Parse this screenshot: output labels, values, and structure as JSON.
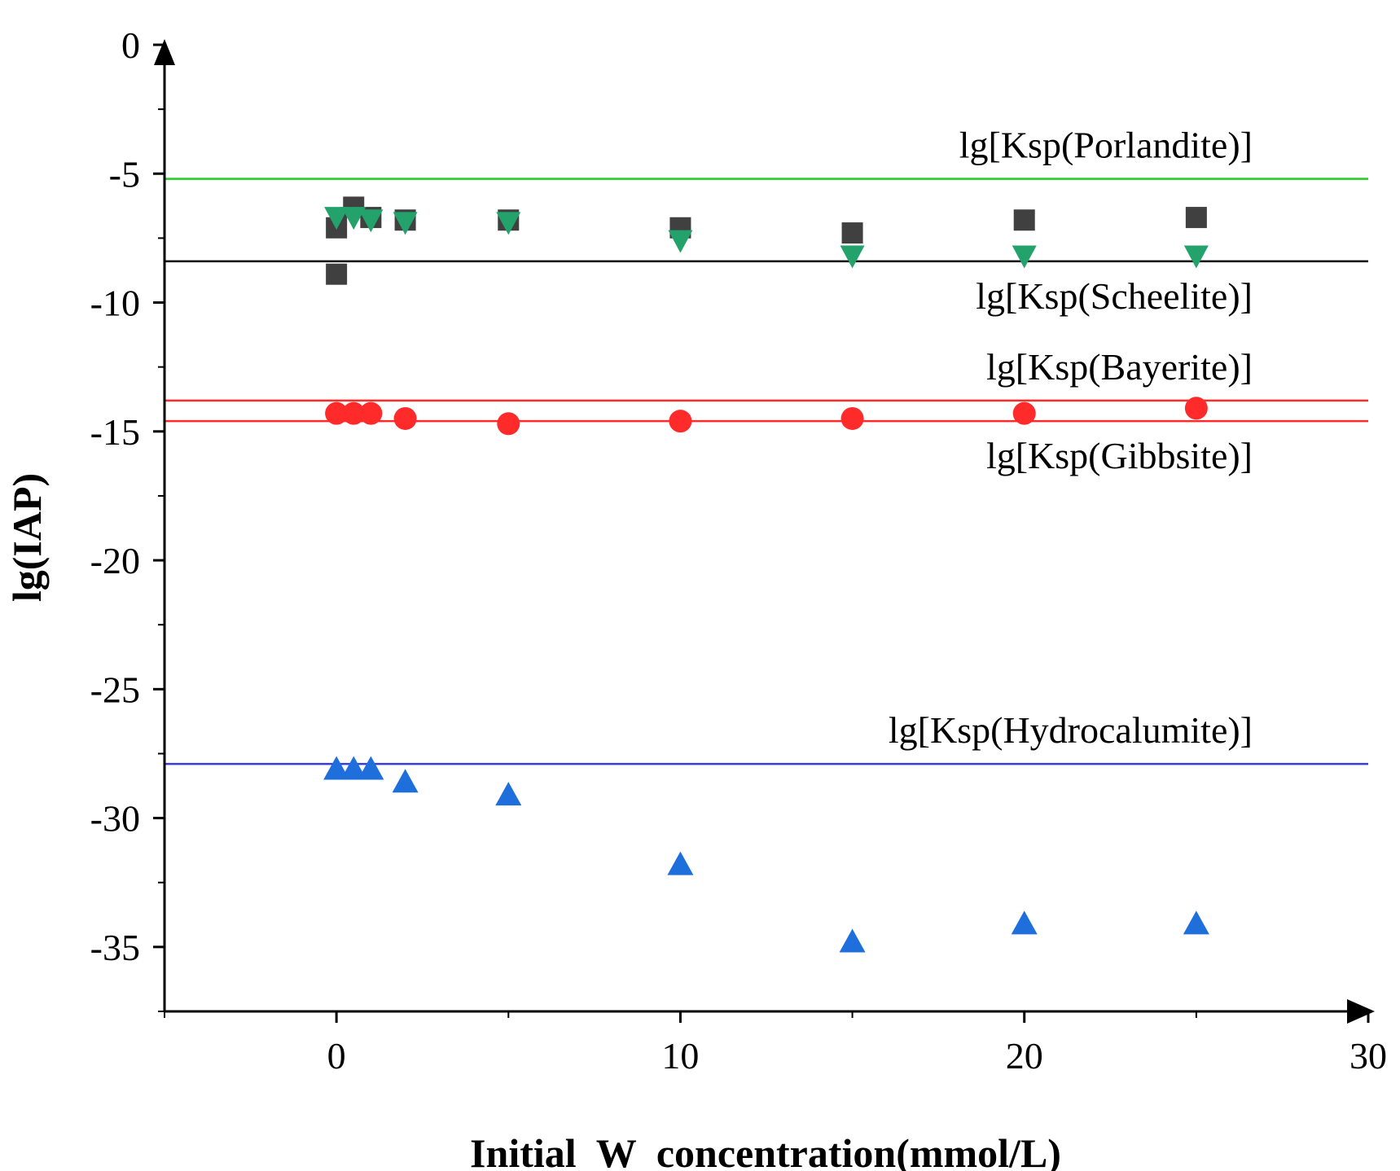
{
  "chart_data": {
    "type": "scatter",
    "xlabel": "Initial  W  concentration(mmol/L)",
    "ylabel": "lg(IAP)",
    "xlim": [
      -5,
      30
    ],
    "ylim": [
      -37.5,
      0
    ],
    "x_ticks": [
      0,
      10,
      20,
      30
    ],
    "y_ticks": [
      0,
      -5,
      -10,
      -15,
      -20,
      -25,
      -30,
      -35
    ],
    "x_tick_labels": [
      "0",
      "10",
      "20",
      "30"
    ],
    "y_tick_labels": [
      "0",
      "-5",
      "-10",
      "-15",
      "-20",
      "-25",
      "-30",
      "-35"
    ],
    "grid": false,
    "series": [
      {
        "name": "black squares",
        "marker": "square",
        "color": "#404040",
        "x": [
          0,
          0,
          0.5,
          1,
          2,
          5,
          10,
          15,
          20,
          25
        ],
        "values": [
          -8.9,
          -7.1,
          -6.3,
          -6.7,
          -6.8,
          -6.8,
          -7.1,
          -7.3,
          -6.8,
          -6.7
        ]
      },
      {
        "name": "green triangles",
        "marker": "triangle-down",
        "color": "#23a36b",
        "x": [
          0,
          0.5,
          1,
          2,
          5,
          10,
          15,
          20,
          25
        ],
        "values": [
          -6.7,
          -6.7,
          -6.8,
          -6.9,
          -6.9,
          -7.6,
          -8.2,
          -8.2,
          -8.2
        ]
      },
      {
        "name": "red circles",
        "marker": "circle",
        "color": "#ff2a2a",
        "x": [
          0,
          0.5,
          1,
          2,
          5,
          10,
          15,
          20,
          25
        ],
        "values": [
          -14.3,
          -14.3,
          -14.3,
          -14.5,
          -14.7,
          -14.6,
          -14.5,
          -14.3,
          -14.1
        ]
      },
      {
        "name": "blue triangles",
        "marker": "triangle-up",
        "color": "#1e6fdc",
        "x": [
          0,
          0.5,
          1,
          2,
          5,
          10,
          15,
          20,
          25
        ],
        "values": [
          -28.1,
          -28.1,
          -28.1,
          -28.6,
          -29.1,
          -31.8,
          -34.8,
          -34.1,
          -34.1
        ]
      }
    ],
    "reference_lines": [
      {
        "label": "lg[Ksp(Porlandite)]",
        "value": -5.2,
        "color": "#22cc22",
        "label_pos": "above"
      },
      {
        "label": "lg[Ksp(Scheelite)]",
        "value": -8.4,
        "color": "#000000",
        "label_pos": "below"
      },
      {
        "label": "lg[Ksp(Bayerite)]",
        "value": -13.8,
        "color": "#ff2a2a",
        "label_pos": "above"
      },
      {
        "label": "lg[Ksp(Gibbsite)]",
        "value": -14.6,
        "color": "#ff2a2a",
        "label_pos": "below"
      },
      {
        "label": "lg[Ksp(Hydrocalumite)]",
        "value": -27.9,
        "color": "#3b3bdc",
        "label_pos": "above"
      }
    ]
  }
}
